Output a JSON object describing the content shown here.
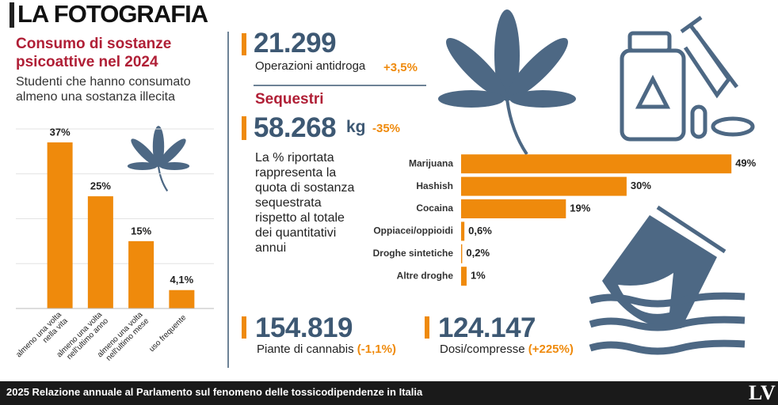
{
  "header": {
    "title": "LA FOTOGRAFIA"
  },
  "students": {
    "title": "Consumo di sostanze psicoattive nel 2024",
    "subtitle": "Studenti che hanno consumato almeno una sostanza illecita"
  },
  "stats": {
    "operations": {
      "value": "21.299",
      "label": "Operazioni antidroga",
      "change": "+3,5%"
    },
    "seizures": {
      "title": "Sequestri",
      "value": "58.268",
      "unit": "kg",
      "change": "-35%",
      "note": "La % riportata rappresenta la quota di sostanza sequestrata rispetto al totale dei quantitativi annui"
    },
    "plants": {
      "value": "154.819",
      "label": "Piante di cannabis",
      "change": "(-1,1%)"
    },
    "doses": {
      "value": "124.147",
      "label": "Dosi/compresse",
      "change": "(+225%)"
    }
  },
  "footer": {
    "source": "2025 Relazione annuale al Parlamento sul fenomeno delle tossicodipendenze in Italia",
    "logo": "LV"
  },
  "chart_data": [
    {
      "type": "bar",
      "categories": [
        "almeno una volta\nnella vita",
        "almeno una volta\nnell'ultimo anno",
        "almeno una volta\nnell'ultimo mese",
        "uso frequente"
      ],
      "values": [
        37,
        25,
        15,
        4.1
      ],
      "value_labels": [
        "37%",
        "25%",
        "15%",
        "4,1%"
      ],
      "color": "#ef8a0c",
      "ylim": [
        0,
        40
      ],
      "yticks": [
        0,
        10,
        20,
        30,
        40
      ],
      "grid": true
    },
    {
      "type": "hbar",
      "categories": [
        "Marijuana",
        "Hashish",
        "Cocaina",
        "Oppiacei/oppioidi",
        "Droghe sintetiche",
        "Altre droghe"
      ],
      "values": [
        49,
        30,
        19,
        0.6,
        0.2,
        1
      ],
      "value_labels": [
        "49%",
        "30%",
        "19%",
        "0,6%",
        "0,2%",
        "1%"
      ],
      "color": "#ef8a0c",
      "xlim": [
        0,
        55
      ]
    }
  ]
}
